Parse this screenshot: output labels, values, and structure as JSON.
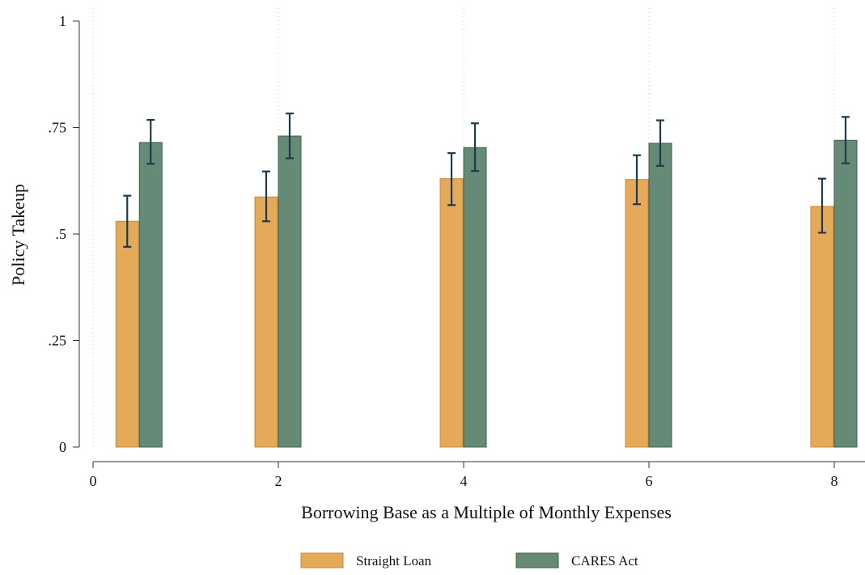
{
  "chart_data": {
    "type": "bar",
    "title": "",
    "xlabel": "Borrowing Base as a Multiple of Monthly Expenses",
    "ylabel": "Policy Takeup",
    "xlim": [
      0,
      8.2
    ],
    "ylim": [
      0,
      1
    ],
    "x_ticks": [
      {
        "value": 0,
        "label": "0"
      },
      {
        "value": 2,
        "label": "2"
      },
      {
        "value": 4,
        "label": "4"
      },
      {
        "value": 6,
        "label": "6"
      },
      {
        "value": 8,
        "label": "8"
      }
    ],
    "y_ticks": [
      {
        "value": 0,
        "label": "0"
      },
      {
        "value": 0.25,
        "label": ".25"
      },
      {
        "value": 0.5,
        "label": ".5"
      },
      {
        "value": 0.75,
        "label": ".75"
      },
      {
        "value": 1,
        "label": "1"
      }
    ],
    "grid": "vertical dotted gridlines at x ticks",
    "legend_position": "bottom-center",
    "series": [
      {
        "name": "Straight Loan",
        "color": "#E5A95A",
        "edge_color": "#C98A3A",
        "points": [
          {
            "x": 0.5,
            "y": 0.53,
            "ci": [
              0.47,
              0.59
            ]
          },
          {
            "x": 2,
            "y": 0.587,
            "ci": [
              0.53,
              0.647
            ]
          },
          {
            "x": 4,
            "y": 0.63,
            "ci": [
              0.568,
              0.69
            ]
          },
          {
            "x": 6,
            "y": 0.628,
            "ci": [
              0.57,
              0.685
            ]
          },
          {
            "x": 8,
            "y": 0.565,
            "ci": [
              0.503,
              0.63
            ]
          }
        ]
      },
      {
        "name": "CARES Act",
        "color": "#658A75",
        "edge_color": "#3F5E4C",
        "points": [
          {
            "x": 0.5,
            "y": 0.715,
            "ci": [
              0.665,
              0.768
            ]
          },
          {
            "x": 2,
            "y": 0.73,
            "ci": [
              0.678,
              0.783
            ]
          },
          {
            "x": 4,
            "y": 0.703,
            "ci": [
              0.648,
              0.76
            ]
          },
          {
            "x": 6,
            "y": 0.713,
            "ci": [
              0.66,
              0.767
            ]
          },
          {
            "x": 8,
            "y": 0.72,
            "ci": [
              0.666,
              0.775
            ]
          }
        ]
      }
    ],
    "errorbar_color": "#1F3A4A"
  }
}
